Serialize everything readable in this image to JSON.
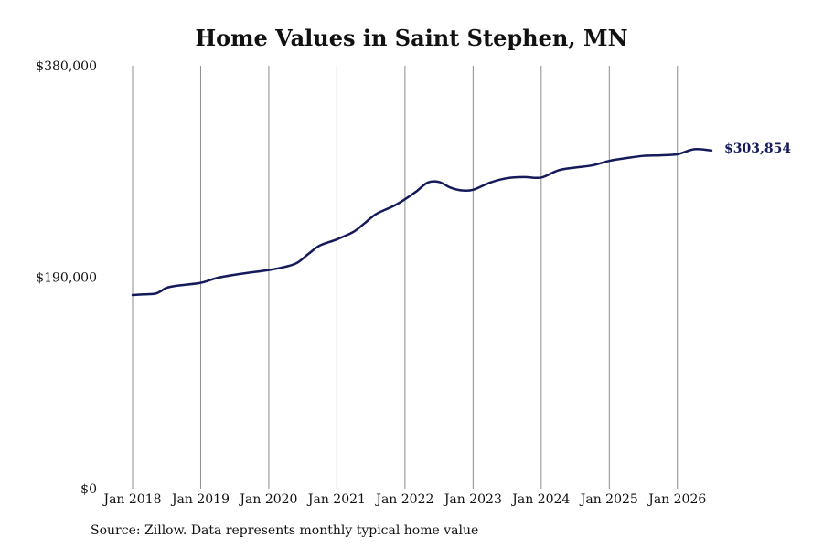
{
  "chart_data": {
    "type": "line",
    "title": "Home Values in Saint Stephen, MN",
    "xlabel": "",
    "ylabel": "",
    "y_ticks": [
      {
        "value": 0,
        "label": "$0"
      },
      {
        "value": 190000,
        "label": "$190,000"
      },
      {
        "value": 380000,
        "label": "$380,000"
      }
    ],
    "ylim": [
      0,
      380000
    ],
    "x_ticks": [
      {
        "date": "2018-01",
        "label": "Jan 2018"
      },
      {
        "date": "2019-01",
        "label": "Jan 2019"
      },
      {
        "date": "2020-01",
        "label": "Jan 2020"
      },
      {
        "date": "2021-01",
        "label": "Jan 2021"
      },
      {
        "date": "2022-01",
        "label": "Jan 2022"
      },
      {
        "date": "2023-01",
        "label": "Jan 2023"
      },
      {
        "date": "2024-01",
        "label": "Jan 2024"
      },
      {
        "date": "2025-01",
        "label": "Jan 2025"
      },
      {
        "date": "2026-01",
        "label": "Jan 2026"
      }
    ],
    "xlim": [
      "2018-01",
      "2026-07"
    ],
    "grid": {
      "vertical": true,
      "horizontal": false
    },
    "legend": "none",
    "series": [
      {
        "color": "#151a5a",
        "points": [
          {
            "x": "2018-01",
            "y": 174000
          },
          {
            "x": "2018-03",
            "y": 174600
          },
          {
            "x": "2018-05",
            "y": 175200
          },
          {
            "x": "2018-06",
            "y": 177500
          },
          {
            "x": "2018-07",
            "y": 180500
          },
          {
            "x": "2018-09",
            "y": 182500
          },
          {
            "x": "2019-01",
            "y": 185000
          },
          {
            "x": "2019-04",
            "y": 189500
          },
          {
            "x": "2019-08",
            "y": 193000
          },
          {
            "x": "2020-01",
            "y": 196500
          },
          {
            "x": "2020-04",
            "y": 199500
          },
          {
            "x": "2020-06",
            "y": 203000
          },
          {
            "x": "2020-08",
            "y": 211000
          },
          {
            "x": "2020-10",
            "y": 218500
          },
          {
            "x": "2021-01",
            "y": 224000
          },
          {
            "x": "2021-04",
            "y": 231000
          },
          {
            "x": "2021-06",
            "y": 239000
          },
          {
            "x": "2021-08",
            "y": 247000
          },
          {
            "x": "2021-11",
            "y": 254000
          },
          {
            "x": "2022-01",
            "y": 260000
          },
          {
            "x": "2022-03",
            "y": 267000
          },
          {
            "x": "2022-05",
            "y": 275000
          },
          {
            "x": "2022-07",
            "y": 275500
          },
          {
            "x": "2022-09",
            "y": 270500
          },
          {
            "x": "2022-11",
            "y": 268000
          },
          {
            "x": "2023-01",
            "y": 268500
          },
          {
            "x": "2023-04",
            "y": 275000
          },
          {
            "x": "2023-07",
            "y": 279000
          },
          {
            "x": "2023-10",
            "y": 280000
          },
          {
            "x": "2024-01",
            "y": 279500
          },
          {
            "x": "2024-04",
            "y": 286000
          },
          {
            "x": "2024-07",
            "y": 288500
          },
          {
            "x": "2024-10",
            "y": 290500
          },
          {
            "x": "2025-01",
            "y": 294500
          },
          {
            "x": "2025-04",
            "y": 297000
          },
          {
            "x": "2025-07",
            "y": 299000
          },
          {
            "x": "2025-10",
            "y": 299500
          },
          {
            "x": "2026-01",
            "y": 300500
          },
          {
            "x": "2026-04",
            "y": 305000
          },
          {
            "x": "2026-07",
            "y": 303854
          }
        ],
        "last_value_label": "$303,854"
      }
    ]
  },
  "footer": {
    "source": "Source: Zillow. Data represents monthly typical home value"
  }
}
